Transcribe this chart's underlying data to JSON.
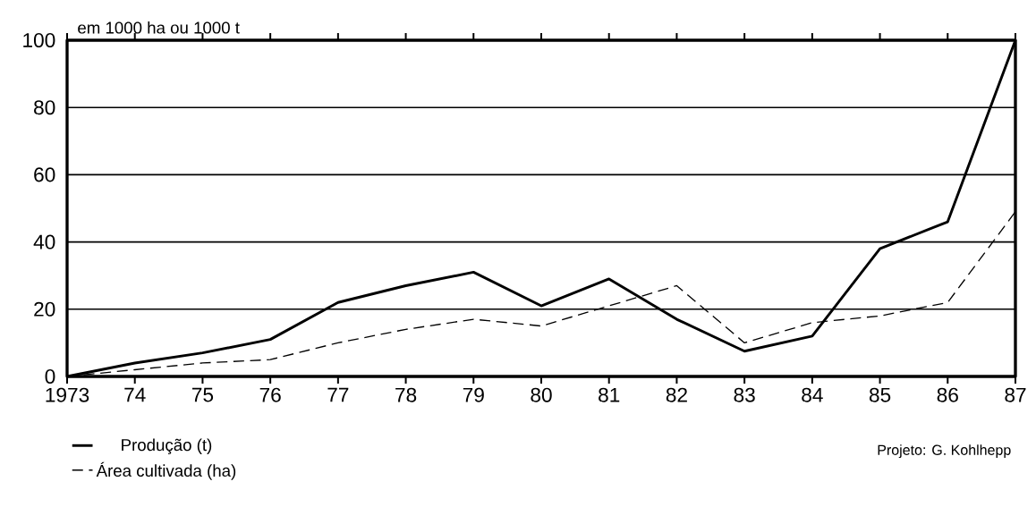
{
  "chart_data": {
    "type": "line",
    "ylabel": "em 1000 ha      ou 1000 t",
    "categories": [
      "1973",
      "74",
      "75",
      "76",
      "77",
      "78",
      "79",
      "80",
      "81",
      "82",
      "83",
      "84",
      "85",
      "86",
      "87"
    ],
    "series": [
      {
        "name": "Produção (t)",
        "color": "#000000",
        "line_style": "solid",
        "values": [
          0,
          4,
          7,
          11,
          22,
          27,
          31,
          21,
          29,
          17,
          7.5,
          12,
          38,
          46,
          100
        ]
      },
      {
        "name": "Área cultivada (ha)",
        "color": "#000000",
        "line_style": "dashed",
        "values": [
          0,
          2,
          4,
          5,
          10,
          14,
          17,
          15,
          21,
          27,
          10,
          16,
          18,
          22,
          49
        ]
      }
    ],
    "ylim": [
      0,
      100
    ],
    "yticks": [
      0,
      20,
      40,
      60,
      80,
      100
    ],
    "grid": "y",
    "legend": "bottom left",
    "marker": "none",
    "annotations": [
      "Projeto: G. Kohlhepp"
    ]
  }
}
